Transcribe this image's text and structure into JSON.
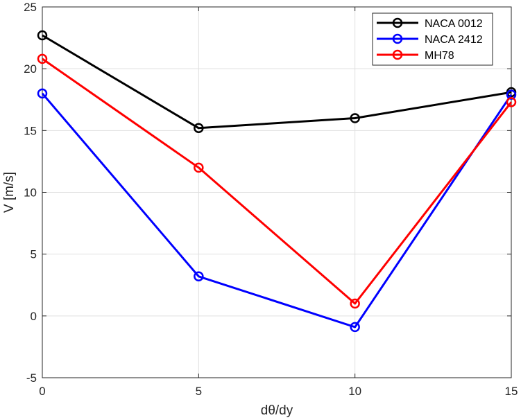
{
  "chart_data": {
    "type": "line",
    "x": [
      0,
      5,
      10,
      15
    ],
    "xlabel": "dθ/dy",
    "ylabel": "V [m/s]",
    "xlim": [
      0,
      15
    ],
    "ylim": [
      -5,
      25
    ],
    "xticks": [
      0,
      5,
      10,
      15
    ],
    "yticks": [
      -5,
      0,
      5,
      10,
      15,
      20,
      25
    ],
    "grid": true,
    "legend_position": "top-right",
    "series": [
      {
        "name": "NACA 0012",
        "color": "#000000",
        "values": [
          22.7,
          15.2,
          16.0,
          18.1
        ]
      },
      {
        "name": "NACA 2412",
        "color": "#0000ff",
        "values": [
          18.0,
          3.2,
          -0.9,
          17.9
        ]
      },
      {
        "name": "MH78",
        "color": "#ff0000",
        "values": [
          20.8,
          12.0,
          1.0,
          17.3
        ]
      }
    ]
  }
}
